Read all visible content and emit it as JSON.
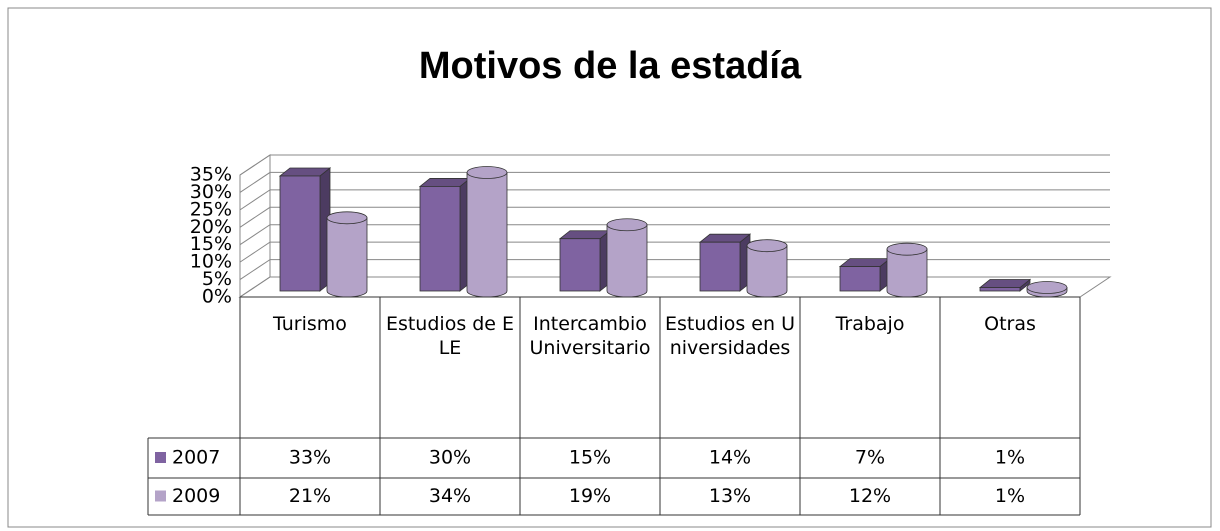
{
  "chart_data": {
    "type": "bar",
    "title": "Motivos de la estadía",
    "categories": [
      "Turismo",
      "Estudios de ELE",
      "Intercambio Universitario",
      "Estudios en Universidades",
      "Trabajo",
      "Otras"
    ],
    "series": [
      {
        "name": "2007",
        "color": "#7f63a1",
        "values": [
          33,
          30,
          15,
          14,
          7,
          1
        ],
        "value_labels": [
          "33%",
          "30%",
          "15%",
          "14%",
          "7%",
          "1%"
        ]
      },
      {
        "name": "2009",
        "color": "#b4a3c8",
        "values": [
          21,
          34,
          19,
          13,
          12,
          1
        ],
        "value_labels": [
          "21%",
          "34%",
          "19%",
          "13%",
          "12%",
          "1%"
        ]
      }
    ],
    "ylim": [
      0,
      35
    ],
    "yticks": [
      {
        "value": 0,
        "label": "0%"
      },
      {
        "value": 5,
        "label": "5%"
      },
      {
        "value": 10,
        "label": "10%"
      },
      {
        "value": 15,
        "label": "15%"
      },
      {
        "value": 20,
        "label": "20%"
      },
      {
        "value": 25,
        "label": "25%"
      },
      {
        "value": 30,
        "label": "30%"
      },
      {
        "value": 35,
        "label": "35%"
      }
    ],
    "grid": true
  }
}
